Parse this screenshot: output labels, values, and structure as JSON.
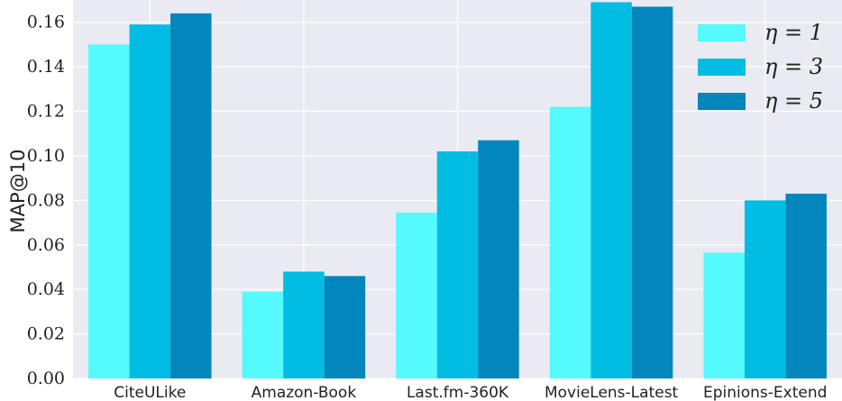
{
  "chart_data": {
    "type": "bar",
    "ylabel": "MAP@10",
    "xlabel": "",
    "ylim": [
      0,
      0.17
    ],
    "yticks": [
      0.0,
      0.02,
      0.04,
      0.06,
      0.08,
      0.1,
      0.12,
      0.14,
      0.16
    ],
    "ytick_labels": [
      "0.00",
      "0.02",
      "0.04",
      "0.06",
      "0.08",
      "0.10",
      "0.12",
      "0.14",
      "0.16"
    ],
    "categories": [
      "CiteULike",
      "Amazon-Book",
      "Last.fm-360K",
      "MovieLens-Latest",
      "Epinions-Extend"
    ],
    "series": [
      {
        "name": "η = 1",
        "color": "#54fafe",
        "values": [
          0.15,
          0.039,
          0.0745,
          0.122,
          0.0565
        ]
      },
      {
        "name": "η = 3",
        "color": "#02bde3",
        "values": [
          0.159,
          0.048,
          0.102,
          0.169,
          0.08
        ]
      },
      {
        "name": "η = 5",
        "color": "#0286bc",
        "values": [
          0.164,
          0.046,
          0.107,
          0.167,
          0.083
        ]
      }
    ],
    "grid": true,
    "legend_position": "top-right",
    "background": "#eaeaf2"
  }
}
